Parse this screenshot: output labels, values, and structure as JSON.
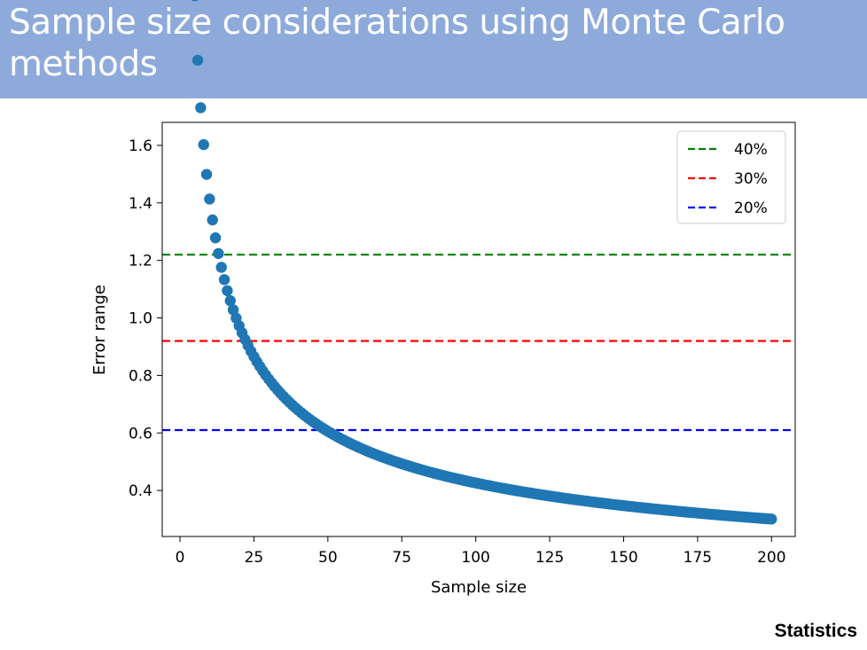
{
  "header": {
    "title": "Sample size considerations using Monte Carlo methods"
  },
  "footer": {
    "label": "Statistics"
  },
  "colors": {
    "banner": "#8eaadb",
    "points": "#1f77b4",
    "line_40": "green",
    "line_30": "red",
    "line_20": "blue"
  },
  "chart_data": {
    "type": "scatter",
    "title": "",
    "xlabel": "Sample size",
    "ylabel": "Error range",
    "xlim": [
      -6,
      208
    ],
    "ylim": [
      0.24,
      1.68
    ],
    "xticks": [
      0,
      25,
      50,
      75,
      100,
      125,
      150,
      175,
      200
    ],
    "yticks": [
      0.4,
      0.6,
      0.8,
      1.0,
      1.2,
      1.4,
      1.6
    ],
    "series": [
      {
        "marker": "circle",
        "color": "#1f77b4",
        "x_start": 5,
        "x_end": 200,
        "x_step": 1,
        "model": "y = 4.24 / sqrt(x - 1)",
        "sample_points": [
          [
            5,
            1.62
          ],
          [
            6,
            1.5
          ],
          [
            8,
            1.42
          ],
          [
            9,
            1.35
          ],
          [
            10,
            1.28
          ],
          [
            11,
            1.22
          ],
          [
            15,
            1.05
          ],
          [
            20,
            0.92
          ],
          [
            30,
            0.76
          ],
          [
            50,
            0.6
          ],
          [
            75,
            0.49
          ],
          [
            100,
            0.43
          ],
          [
            125,
            0.37
          ],
          [
            150,
            0.34
          ],
          [
            175,
            0.31
          ],
          [
            200,
            0.3
          ]
        ]
      }
    ],
    "hlines": [
      {
        "name": "40%",
        "y": 1.22,
        "color": "green",
        "style": "dashed"
      },
      {
        "name": "30%",
        "y": 0.92,
        "color": "red",
        "style": "dashed"
      },
      {
        "name": "20%",
        "y": 0.61,
        "color": "blue",
        "style": "dashed"
      }
    ],
    "legend": {
      "position": "top-right",
      "entries": [
        "40%",
        "30%",
        "20%"
      ]
    },
    "grid": false
  }
}
